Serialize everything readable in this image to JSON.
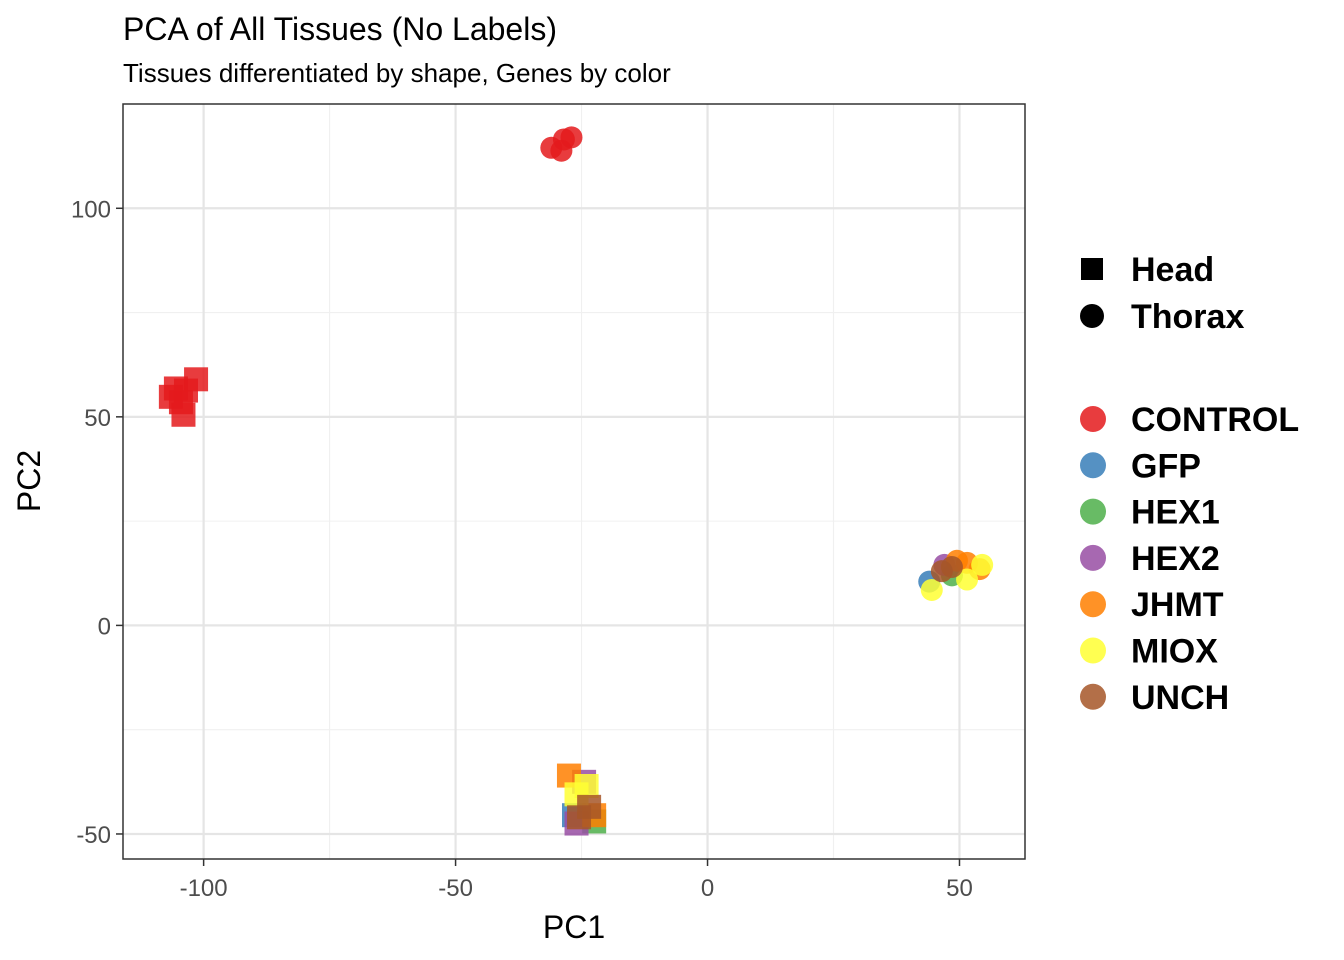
{
  "chart_data": {
    "type": "scatter",
    "title": "PCA of All Tissues (No Labels)",
    "subtitle": "Tissues differentiated by shape, Genes by color",
    "xlabel": "PC1",
    "ylabel": "PC2",
    "xlim": [
      -116,
      63
    ],
    "ylim": [
      -56,
      125
    ],
    "x_ticks": [
      -100,
      -50,
      0,
      50
    ],
    "x_tick_labels": [
      "-100",
      "-50",
      "0",
      "50"
    ],
    "y_ticks": [
      -50,
      0,
      50,
      100
    ],
    "y_tick_labels": [
      "-50",
      "0",
      "50",
      "100"
    ],
    "grid": true,
    "legend_position": "right",
    "shape_legend": [
      {
        "name": "Head",
        "shape": "square"
      },
      {
        "name": "Thorax",
        "shape": "circle"
      }
    ],
    "series": [
      {
        "name": "CONTROL",
        "color": "#E41A1C",
        "points": [
          {
            "x": -106.5,
            "y": 54.8,
            "tissue": "Head"
          },
          {
            "x": -105.5,
            "y": 56.8,
            "tissue": "Head"
          },
          {
            "x": -104.5,
            "y": 53.5,
            "tissue": "Head"
          },
          {
            "x": -103.5,
            "y": 56.3,
            "tissue": "Head"
          },
          {
            "x": -101.5,
            "y": 59.0,
            "tissue": "Head"
          },
          {
            "x": -104.0,
            "y": 50.5,
            "tissue": "Head"
          },
          {
            "x": -31.0,
            "y": 114.5,
            "tissue": "Thorax"
          },
          {
            "x": -29.0,
            "y": 113.8,
            "tissue": "Thorax"
          },
          {
            "x": -28.5,
            "y": 116.5,
            "tissue": "Thorax"
          },
          {
            "x": -27.0,
            "y": 117.0,
            "tissue": "Thorax"
          }
        ]
      },
      {
        "name": "GFP",
        "color": "#377EB8",
        "points": [
          {
            "x": -26.5,
            "y": -45.5,
            "tissue": "Head"
          },
          {
            "x": 44.0,
            "y": 10.5,
            "tissue": "Thorax"
          }
        ]
      },
      {
        "name": "HEX1",
        "color": "#4DAF4A",
        "points": [
          {
            "x": -22.5,
            "y": -47.0,
            "tissue": "Head"
          },
          {
            "x": 48.5,
            "y": 12.0,
            "tissue": "Thorax"
          }
        ]
      },
      {
        "name": "HEX2",
        "color": "#984EA3",
        "points": [
          {
            "x": -26.0,
            "y": -47.5,
            "tissue": "Head"
          },
          {
            "x": -24.5,
            "y": -37.5,
            "tissue": "Head"
          },
          {
            "x": 47.0,
            "y": 14.5,
            "tissue": "Thorax"
          }
        ]
      },
      {
        "name": "JHMT",
        "color": "#FF7F00",
        "points": [
          {
            "x": -27.5,
            "y": -36.0,
            "tissue": "Head"
          },
          {
            "x": -22.5,
            "y": -45.5,
            "tissue": "Head"
          },
          {
            "x": 49.5,
            "y": 15.5,
            "tissue": "Thorax"
          },
          {
            "x": 51.5,
            "y": 15.0,
            "tissue": "Thorax"
          },
          {
            "x": 54.0,
            "y": 13.5,
            "tissue": "Thorax"
          }
        ]
      },
      {
        "name": "MIOX",
        "color": "#FFFF33",
        "points": [
          {
            "x": -24.0,
            "y": -38.5,
            "tissue": "Head"
          },
          {
            "x": -26.0,
            "y": -40.5,
            "tissue": "Head"
          },
          {
            "x": 44.5,
            "y": 8.5,
            "tissue": "Thorax"
          },
          {
            "x": 51.5,
            "y": 11.0,
            "tissue": "Thorax"
          },
          {
            "x": 54.5,
            "y": 14.5,
            "tissue": "Thorax"
          }
        ]
      },
      {
        "name": "UNCH",
        "color": "#A65628",
        "points": [
          {
            "x": -23.5,
            "y": -43.5,
            "tissue": "Head"
          },
          {
            "x": -25.5,
            "y": -46.0,
            "tissue": "Head"
          },
          {
            "x": 46.5,
            "y": 13.0,
            "tissue": "Thorax"
          },
          {
            "x": 48.5,
            "y": 14.0,
            "tissue": "Thorax"
          }
        ]
      }
    ]
  }
}
